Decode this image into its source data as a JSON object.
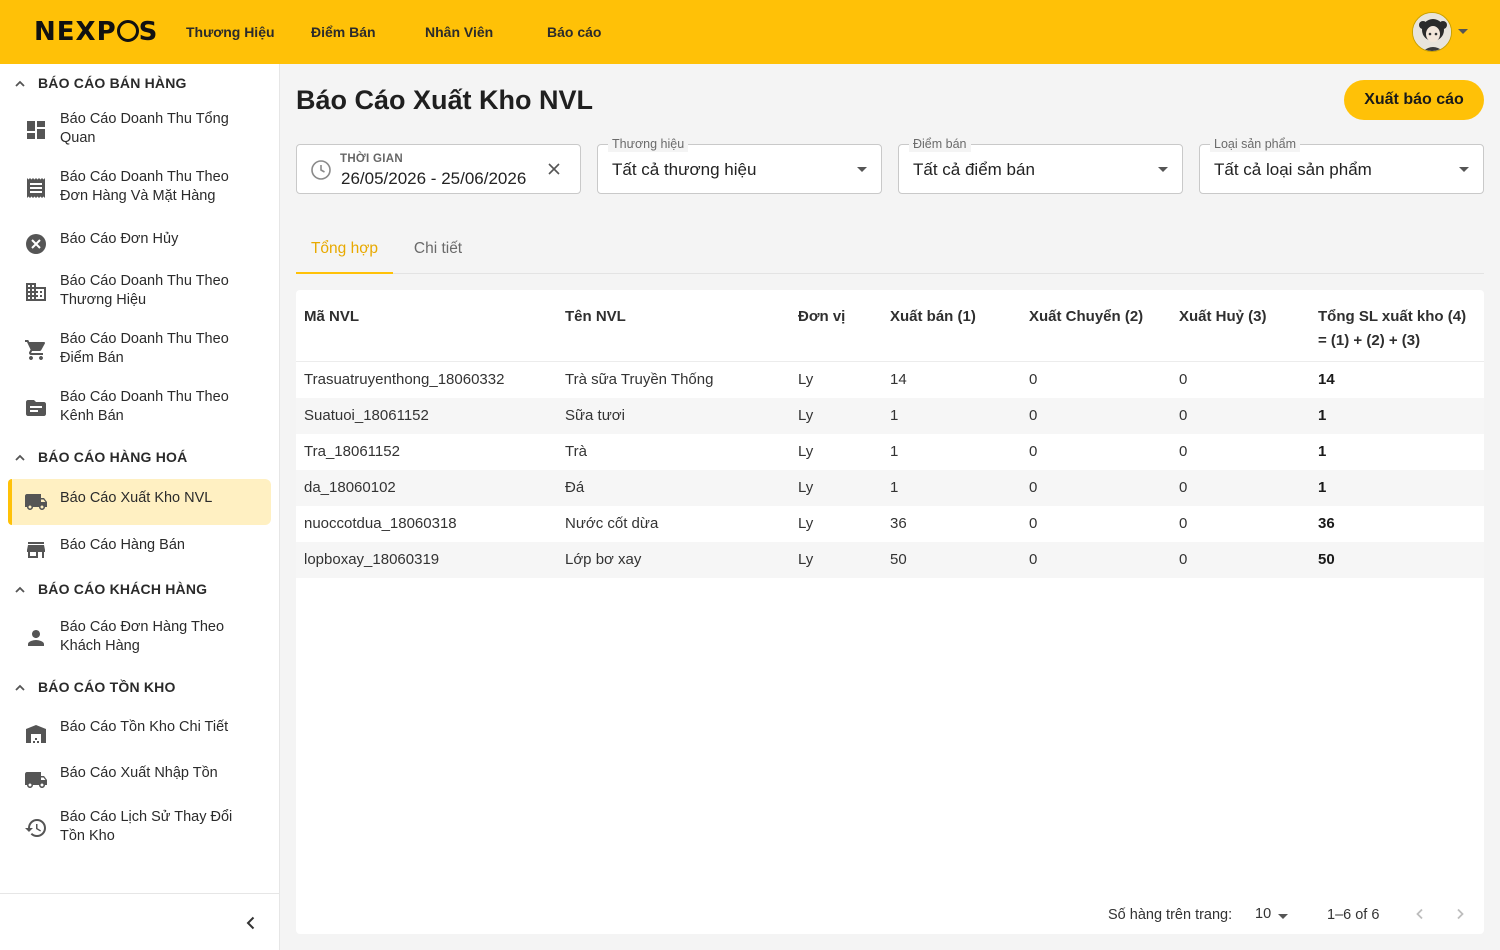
{
  "header": {
    "logo_text": "NEXPOS",
    "nav": [
      "Thương Hiệu",
      "Điểm Bán",
      "Nhân Viên",
      "Báo cáo"
    ],
    "avatar_icon": "user-avatar",
    "brand_color": "#FFC107"
  },
  "sidebar": {
    "sections": [
      {
        "title": "BÁO CÁO BÁN HÀNG",
        "items": [
          {
            "label": "Báo Cáo Doanh Thu Tổng Quan",
            "icon": "dashboard-icon"
          },
          {
            "label": "Báo Cáo Doanh Thu Theo Đơn Hàng Và Mặt Hàng",
            "icon": "receipt-icon"
          },
          {
            "label": "Báo Cáo Đơn Hủy",
            "icon": "cancel-icon"
          },
          {
            "label": "Báo Cáo Doanh Thu Theo Thương Hiệu",
            "icon": "building-icon"
          },
          {
            "label": "Báo Cáo Doanh Thu Theo Điểm Bán",
            "icon": "cart-icon"
          },
          {
            "label": "Báo Cáo Doanh Thu Theo Kênh Bán",
            "icon": "folder-icon"
          }
        ]
      },
      {
        "title": "BÁO CÁO HÀNG HOÁ",
        "items": [
          {
            "label": "Báo Cáo Xuất Kho NVL",
            "icon": "truck-icon",
            "active": true
          },
          {
            "label": "Báo Cáo Hàng Bán",
            "icon": "store-icon"
          }
        ]
      },
      {
        "title": "BÁO CÁO KHÁCH HÀNG",
        "items": [
          {
            "label": "Báo Cáo Đơn Hàng Theo Khách Hàng",
            "icon": "person-icon"
          }
        ]
      },
      {
        "title": "BÁO CÁO TỒN KHO",
        "items": [
          {
            "label": "Báo Cáo Tồn Kho Chi Tiết",
            "icon": "warehouse-icon"
          },
          {
            "label": "Báo Cáo Xuất Nhập Tồn",
            "icon": "truck-icon"
          },
          {
            "label": "Báo Cáo Lịch Sử Thay Đổi Tồn Kho",
            "icon": "history-icon"
          }
        ]
      }
    ]
  },
  "main": {
    "title": "Báo Cáo Xuất Kho NVL",
    "export_label": "Xuất báo cáo",
    "filters": {
      "time_label": "THỜI GIAN",
      "time_value": "26/05/2026 - 25/06/2026",
      "brand_label": "Thương hiệu",
      "brand_value": "Tất cả thương hiệu",
      "store_label": "Điểm bán",
      "store_value": "Tất cả điểm bán",
      "product_type_label": "Loại sản phẩm",
      "product_type_value": "Tất cả loại sản phẩm"
    },
    "tabs": [
      {
        "label": "Tổng hợp",
        "active": true
      },
      {
        "label": "Chi tiết",
        "active": false
      }
    ],
    "table": {
      "columns": [
        "Mã NVL",
        "Tên NVL",
        "Đơn vị",
        "Xuất bán (1)",
        "Xuất Chuyển (2)",
        "Xuất Huỷ (3)",
        "Tổng SL xuất kho (4)",
        "= (1) + (2) + (3)"
      ],
      "rows": [
        [
          "Trasuatruyenthong_18060332",
          "Trà sữa Truyền Thống",
          "Ly",
          "14",
          "0",
          "0",
          "14"
        ],
        [
          "Suatuoi_18061152",
          "Sữa tươi",
          "Ly",
          "1",
          "0",
          "0",
          "1"
        ],
        [
          "Tra_18061152",
          "Trà",
          "Ly",
          "1",
          "0",
          "0",
          "1"
        ],
        [
          "da_18060102",
          "Đá",
          "Ly",
          "1",
          "0",
          "0",
          "1"
        ],
        [
          "nuoccotdua_18060318",
          "Nước cốt dừa",
          "Ly",
          "36",
          "0",
          "0",
          "36"
        ],
        [
          "lopboxay_18060319",
          "Lớp bơ xay",
          "Ly",
          "50",
          "0",
          "0",
          "50"
        ]
      ]
    },
    "pagination": {
      "rows_per_page_label": "Số hàng trên trang:",
      "rows_per_page": "10",
      "range": "1–6 of 6"
    }
  }
}
